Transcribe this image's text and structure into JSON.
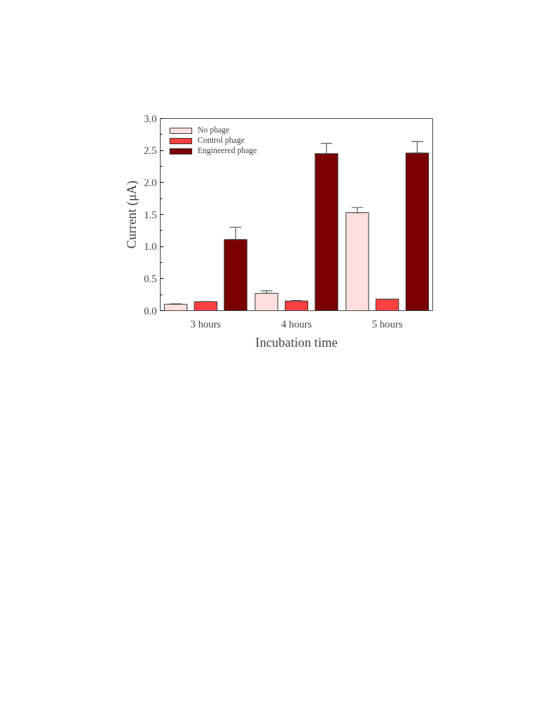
{
  "chart_data": {
    "type": "bar",
    "xlabel": "Incubation time",
    "ylabel": "Current (μA)",
    "categories": [
      "3 hours",
      "4 hours",
      "5 hours"
    ],
    "series": [
      {
        "name": "No phage",
        "color": "#fde0de",
        "values": [
          0.1,
          0.27,
          1.53
        ],
        "errors": [
          [
            0.1,
            0.11
          ],
          [
            0.27,
            0.31
          ],
          [
            1.53,
            1.61
          ]
        ]
      },
      {
        "name": "Control phage",
        "color": "#ff4040",
        "values": [
          0.14,
          0.15,
          0.18
        ],
        "errors": [
          [
            0.14,
            0.14
          ],
          [
            0.15,
            0.16
          ],
          [
            0.18,
            0.18
          ]
        ]
      },
      {
        "name": "Engineered phage",
        "color": "#7a0000",
        "values": [
          1.11,
          2.45,
          2.46
        ],
        "errors": [
          [
            1.11,
            1.3
          ],
          [
            2.45,
            2.61
          ],
          [
            2.46,
            2.64
          ]
        ]
      }
    ],
    "ylim": [
      0,
      3.0
    ],
    "yticks": [
      {
        "value": 0,
        "label": "0.0"
      },
      0.5,
      {
        "value": 1,
        "label": "1.0"
      },
      1.5,
      {
        "value": 2,
        "label": "2.0"
      },
      2.5,
      {
        "value": 3,
        "label": "3.0"
      }
    ],
    "grid": false,
    "legend": "top left"
  }
}
